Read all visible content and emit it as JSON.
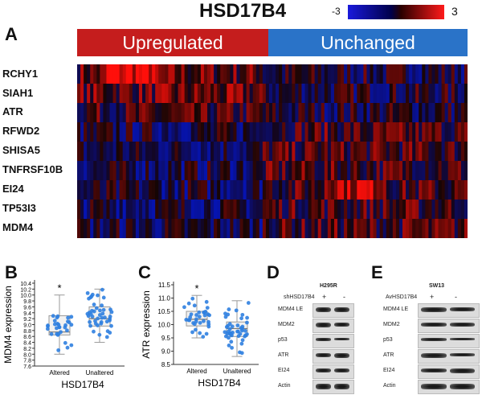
{
  "figure": {
    "title": "HSD17B4",
    "scale": {
      "min": "-3",
      "max": "3"
    },
    "panels": {
      "a": "A",
      "b": "B",
      "c": "C",
      "d": "D",
      "e": "E"
    }
  },
  "heatmap": {
    "groups": [
      "Upregulated",
      "Unchanged"
    ],
    "genes": [
      "RCHY1",
      "SIAH1",
      "ATR",
      "RFWD2",
      "SHISA5",
      "TNFRSF10B",
      "EI24",
      "TP53I3",
      "MDM4"
    ],
    "columns": 120,
    "upregulated_columns": 57
  },
  "chart_data": [
    {
      "type": "scatter",
      "panel": "B",
      "ylabel": "MDM4 expression",
      "xlabel": "HSD17B4",
      "categories": [
        "Altered",
        "Unaltered"
      ],
      "yticks": [
        "7.6",
        "7.8",
        "8.0",
        "8.2",
        "8.4",
        "8.6",
        "8.8",
        "9.0",
        "9.2",
        "9.4",
        "9.6",
        "9.8",
        "10.0",
        "10.2",
        "10.4"
      ],
      "ylim": [
        7.6,
        10.4
      ],
      "boxes": [
        {
          "q1": 8.65,
          "median": 8.75,
          "q3": 9.3,
          "min": 8.0,
          "max": 10.0
        },
        {
          "q1": 8.95,
          "median": 9.2,
          "q3": 9.6,
          "min": 8.4,
          "max": 10.2
        }
      ],
      "annotation": "*"
    },
    {
      "type": "scatter",
      "panel": "C",
      "ylabel": "ATR expression",
      "xlabel": "HSD17B4",
      "categories": [
        "Altered",
        "Unaltered"
      ],
      "yticks": [
        "8.5",
        "9.0",
        "9.5",
        "10.0",
        "10.5",
        "11.0",
        "11.5"
      ],
      "ylim": [
        8.5,
        11.5
      ],
      "boxes": [
        {
          "q1": 9.95,
          "median": 10.2,
          "q3": 10.5,
          "min": 9.5,
          "max": 11.1
        },
        {
          "q1": 9.55,
          "median": 9.85,
          "q3": 10.1,
          "min": 8.8,
          "max": 10.9
        }
      ],
      "annotation": "*"
    }
  ],
  "western_d": {
    "cell_line": "H295R",
    "treatment": "shHSD17B4",
    "signs": [
      "+",
      "-"
    ],
    "bands": [
      "MDM4 LE",
      "MDM2",
      "p53",
      "ATR",
      "EI24",
      "Actin"
    ]
  },
  "western_e": {
    "cell_line": "SW13",
    "treatment": "AvHSD17B4",
    "signs": [
      "+",
      "-"
    ],
    "bands": [
      "MDM4 LE",
      "MDM2",
      "p53",
      "ATR",
      "EI24",
      "Actin"
    ]
  },
  "colors": {
    "up": "#c51d1d",
    "unchanged": "#2a73c8",
    "dot": "#2f7fe0"
  }
}
